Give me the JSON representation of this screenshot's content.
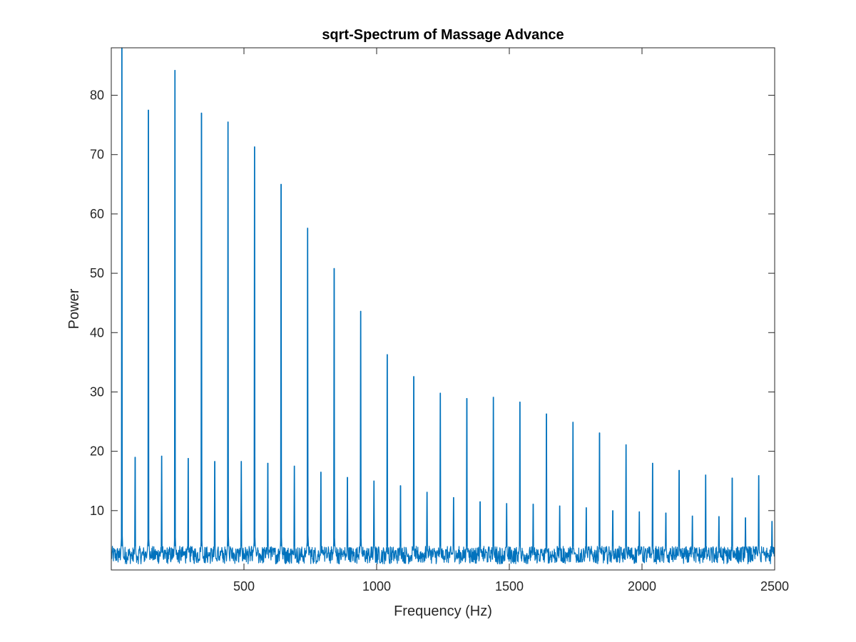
{
  "chart_data": {
    "type": "line",
    "title": "sqrt-Spectrum of Massage Advance",
    "xlabel": "Frequency (Hz)",
    "ylabel": "Power",
    "xlim": [
      0,
      2500
    ],
    "ylim": [
      0,
      88
    ],
    "xticks": [
      500,
      1000,
      1500,
      2000,
      2500
    ],
    "yticks": [
      10,
      20,
      30,
      40,
      50,
      60,
      70,
      80
    ],
    "grid": false,
    "legend": "none",
    "line_color": "#0072BD",
    "noise_floor": [
      1,
      4
    ],
    "series": [
      {
        "peaks_x": [
          40,
          90,
          140,
          190,
          240,
          290,
          340,
          390,
          440,
          490,
          540,
          590,
          640,
          690,
          740,
          790,
          840,
          890,
          940,
          990,
          1040,
          1090,
          1140,
          1190,
          1240,
          1290,
          1340,
          1390,
          1440,
          1490,
          1540,
          1590,
          1640,
          1690,
          1740,
          1790,
          1840,
          1890,
          1940,
          1990,
          2040,
          2090,
          2140,
          2190,
          2240,
          2290,
          2340,
          2390,
          2440,
          2490
        ],
        "peaks_y": [
          88,
          19,
          77.5,
          19.2,
          84.2,
          18.8,
          77,
          18.3,
          75.5,
          18.3,
          71.3,
          18,
          65,
          17.5,
          57.6,
          16.5,
          50.8,
          15.6,
          43.6,
          15,
          36.3,
          14.2,
          32.6,
          13.1,
          29.8,
          12.2,
          28.9,
          11.5,
          29.1,
          11.2,
          28.3,
          11.1,
          26.3,
          10.8,
          24.9,
          10.5,
          23.1,
          10,
          21.1,
          9.8,
          18,
          9.6,
          16.8,
          9.1,
          16,
          9,
          15.5,
          8.8,
          15.9,
          8.2
        ]
      }
    ]
  }
}
